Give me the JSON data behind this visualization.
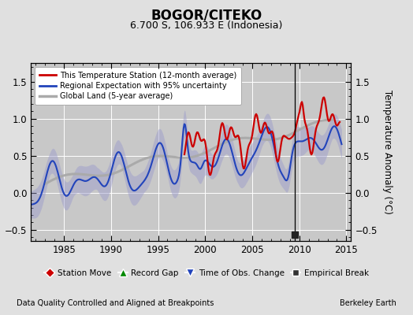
{
  "title": "BOGOR/CITEKO",
  "subtitle": "6.700 S, 106.933 E (Indonesia)",
  "ylabel": "Temperature Anomaly (°C)",
  "xlabel_left": "Data Quality Controlled and Aligned at Breakpoints",
  "xlabel_right": "Berkeley Earth",
  "ylim": [
    -0.65,
    1.75
  ],
  "xlim": [
    1981.5,
    2015.5
  ],
  "yticks": [
    -0.5,
    0,
    0.5,
    1.0,
    1.5
  ],
  "xticks": [
    1985,
    1990,
    1995,
    2000,
    2005,
    2010,
    2015
  ],
  "bg_color": "#e0e0e0",
  "plot_bg_color": "#c8c8c8",
  "empirical_break_x": 2009.5,
  "empirical_break_y": -0.57,
  "vertical_line_x": 2009.5,
  "red_color": "#cc0000",
  "blue_color": "#2244bb",
  "gray_color": "#aaaaaa",
  "band_color": "#9999cc",
  "band_alpha": 0.45
}
